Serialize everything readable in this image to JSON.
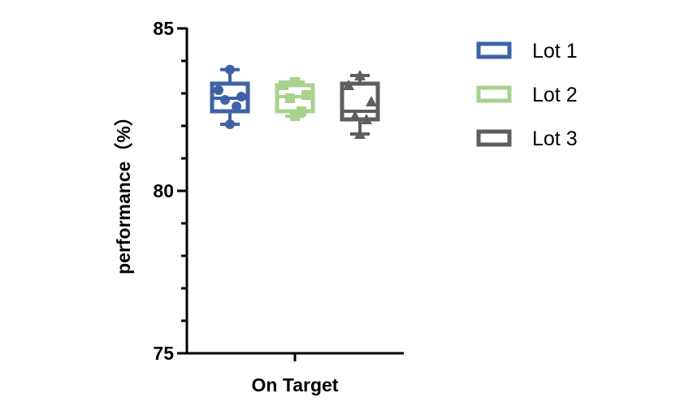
{
  "chart_data": {
    "type": "box",
    "title": "",
    "xlabel": "",
    "ylabel": "performance（%）",
    "ylim": [
      75,
      85
    ],
    "yticks": [
      75,
      80,
      85
    ],
    "categories": [
      "On Target"
    ],
    "legend_placement": "right",
    "grid": false,
    "series": [
      {
        "name": "Lot 1",
        "color": "#3f62a6",
        "marker": "circle",
        "min": 82.05,
        "q1": 82.45,
        "median": 82.85,
        "q3": 83.3,
        "max": 83.73,
        "points": [
          83.73,
          83.1,
          82.9,
          82.8,
          82.6,
          82.05
        ]
      },
      {
        "name": "Lot 2",
        "color": "#a9d18e",
        "marker": "square",
        "min": 82.3,
        "q1": 82.45,
        "median": 82.9,
        "q3": 83.25,
        "max": 83.35,
        "points": [
          83.35,
          83.25,
          82.95,
          82.85,
          82.45,
          82.3
        ]
      },
      {
        "name": "Lot 3",
        "color": "#5e5e5e",
        "marker": "triangle",
        "min": 81.75,
        "q1": 82.2,
        "median": 82.45,
        "q3": 83.3,
        "max": 83.55,
        "points": [
          83.55,
          83.25,
          82.75,
          82.3,
          82.2,
          81.75
        ]
      }
    ]
  }
}
